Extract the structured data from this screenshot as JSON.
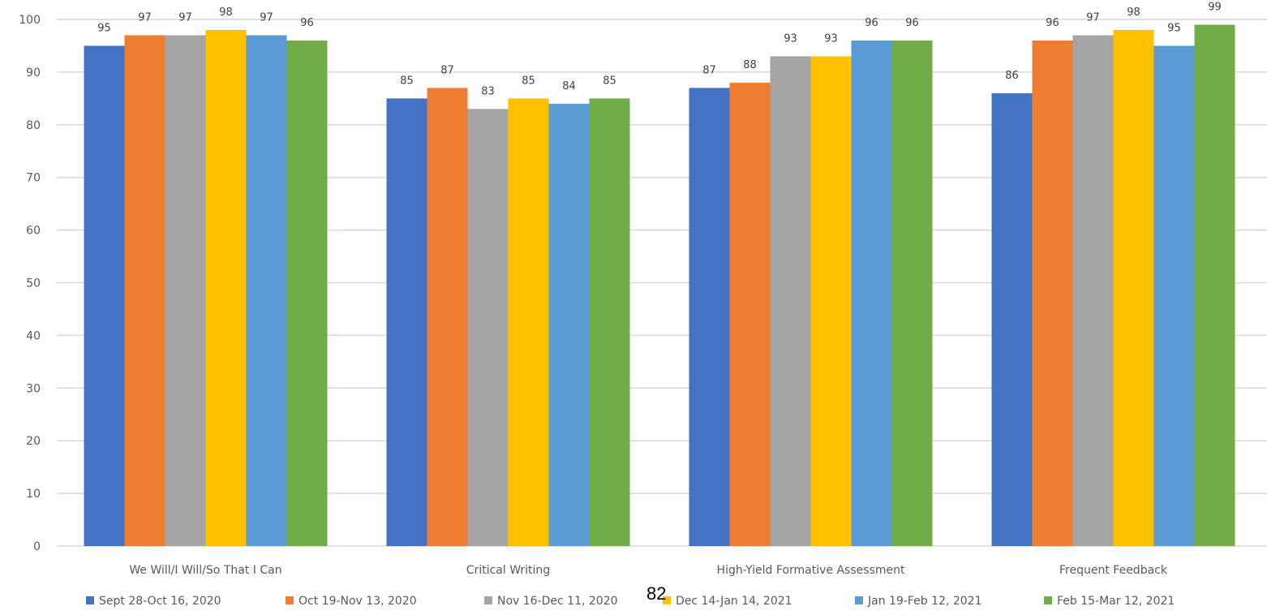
{
  "page_number": "82",
  "chart_data": {
    "type": "bar",
    "categories": [
      "We Will/I Will/So That I Can",
      "Critical Writing",
      "High-Yield Formative Assessment",
      "Frequent Feedback"
    ],
    "series": [
      {
        "name": "Sept 28-Oct 16, 2020",
        "color": "#4472C4",
        "values": [
          95,
          85,
          87,
          86
        ]
      },
      {
        "name": "Oct 19-Nov 13, 2020",
        "color": "#ED7D31",
        "values": [
          97,
          87,
          88,
          96
        ]
      },
      {
        "name": "Nov 16-Dec 11, 2020",
        "color": "#A5A5A5",
        "values": [
          97,
          83,
          93,
          97
        ]
      },
      {
        "name": "Dec 14-Jan 14, 2021",
        "color": "#FFC000",
        "values": [
          98,
          85,
          93,
          98
        ]
      },
      {
        "name": "Jan 19-Feb 12, 2021",
        "color": "#5B9BD5",
        "values": [
          97,
          84,
          96,
          95
        ]
      },
      {
        "name": "Feb 15-Mar 12, 2021",
        "color": "#70AD47",
        "values": [
          96,
          85,
          96,
          99
        ]
      }
    ],
    "title": "",
    "xlabel": "",
    "ylabel": "",
    "ylim": [
      0,
      100
    ],
    "yticks": [
      0,
      10,
      20,
      30,
      40,
      50,
      60,
      70,
      80,
      90,
      100
    ],
    "data_labels": true,
    "grid": true,
    "legend_position": "bottom",
    "grid_color": "#D9D9D9"
  }
}
